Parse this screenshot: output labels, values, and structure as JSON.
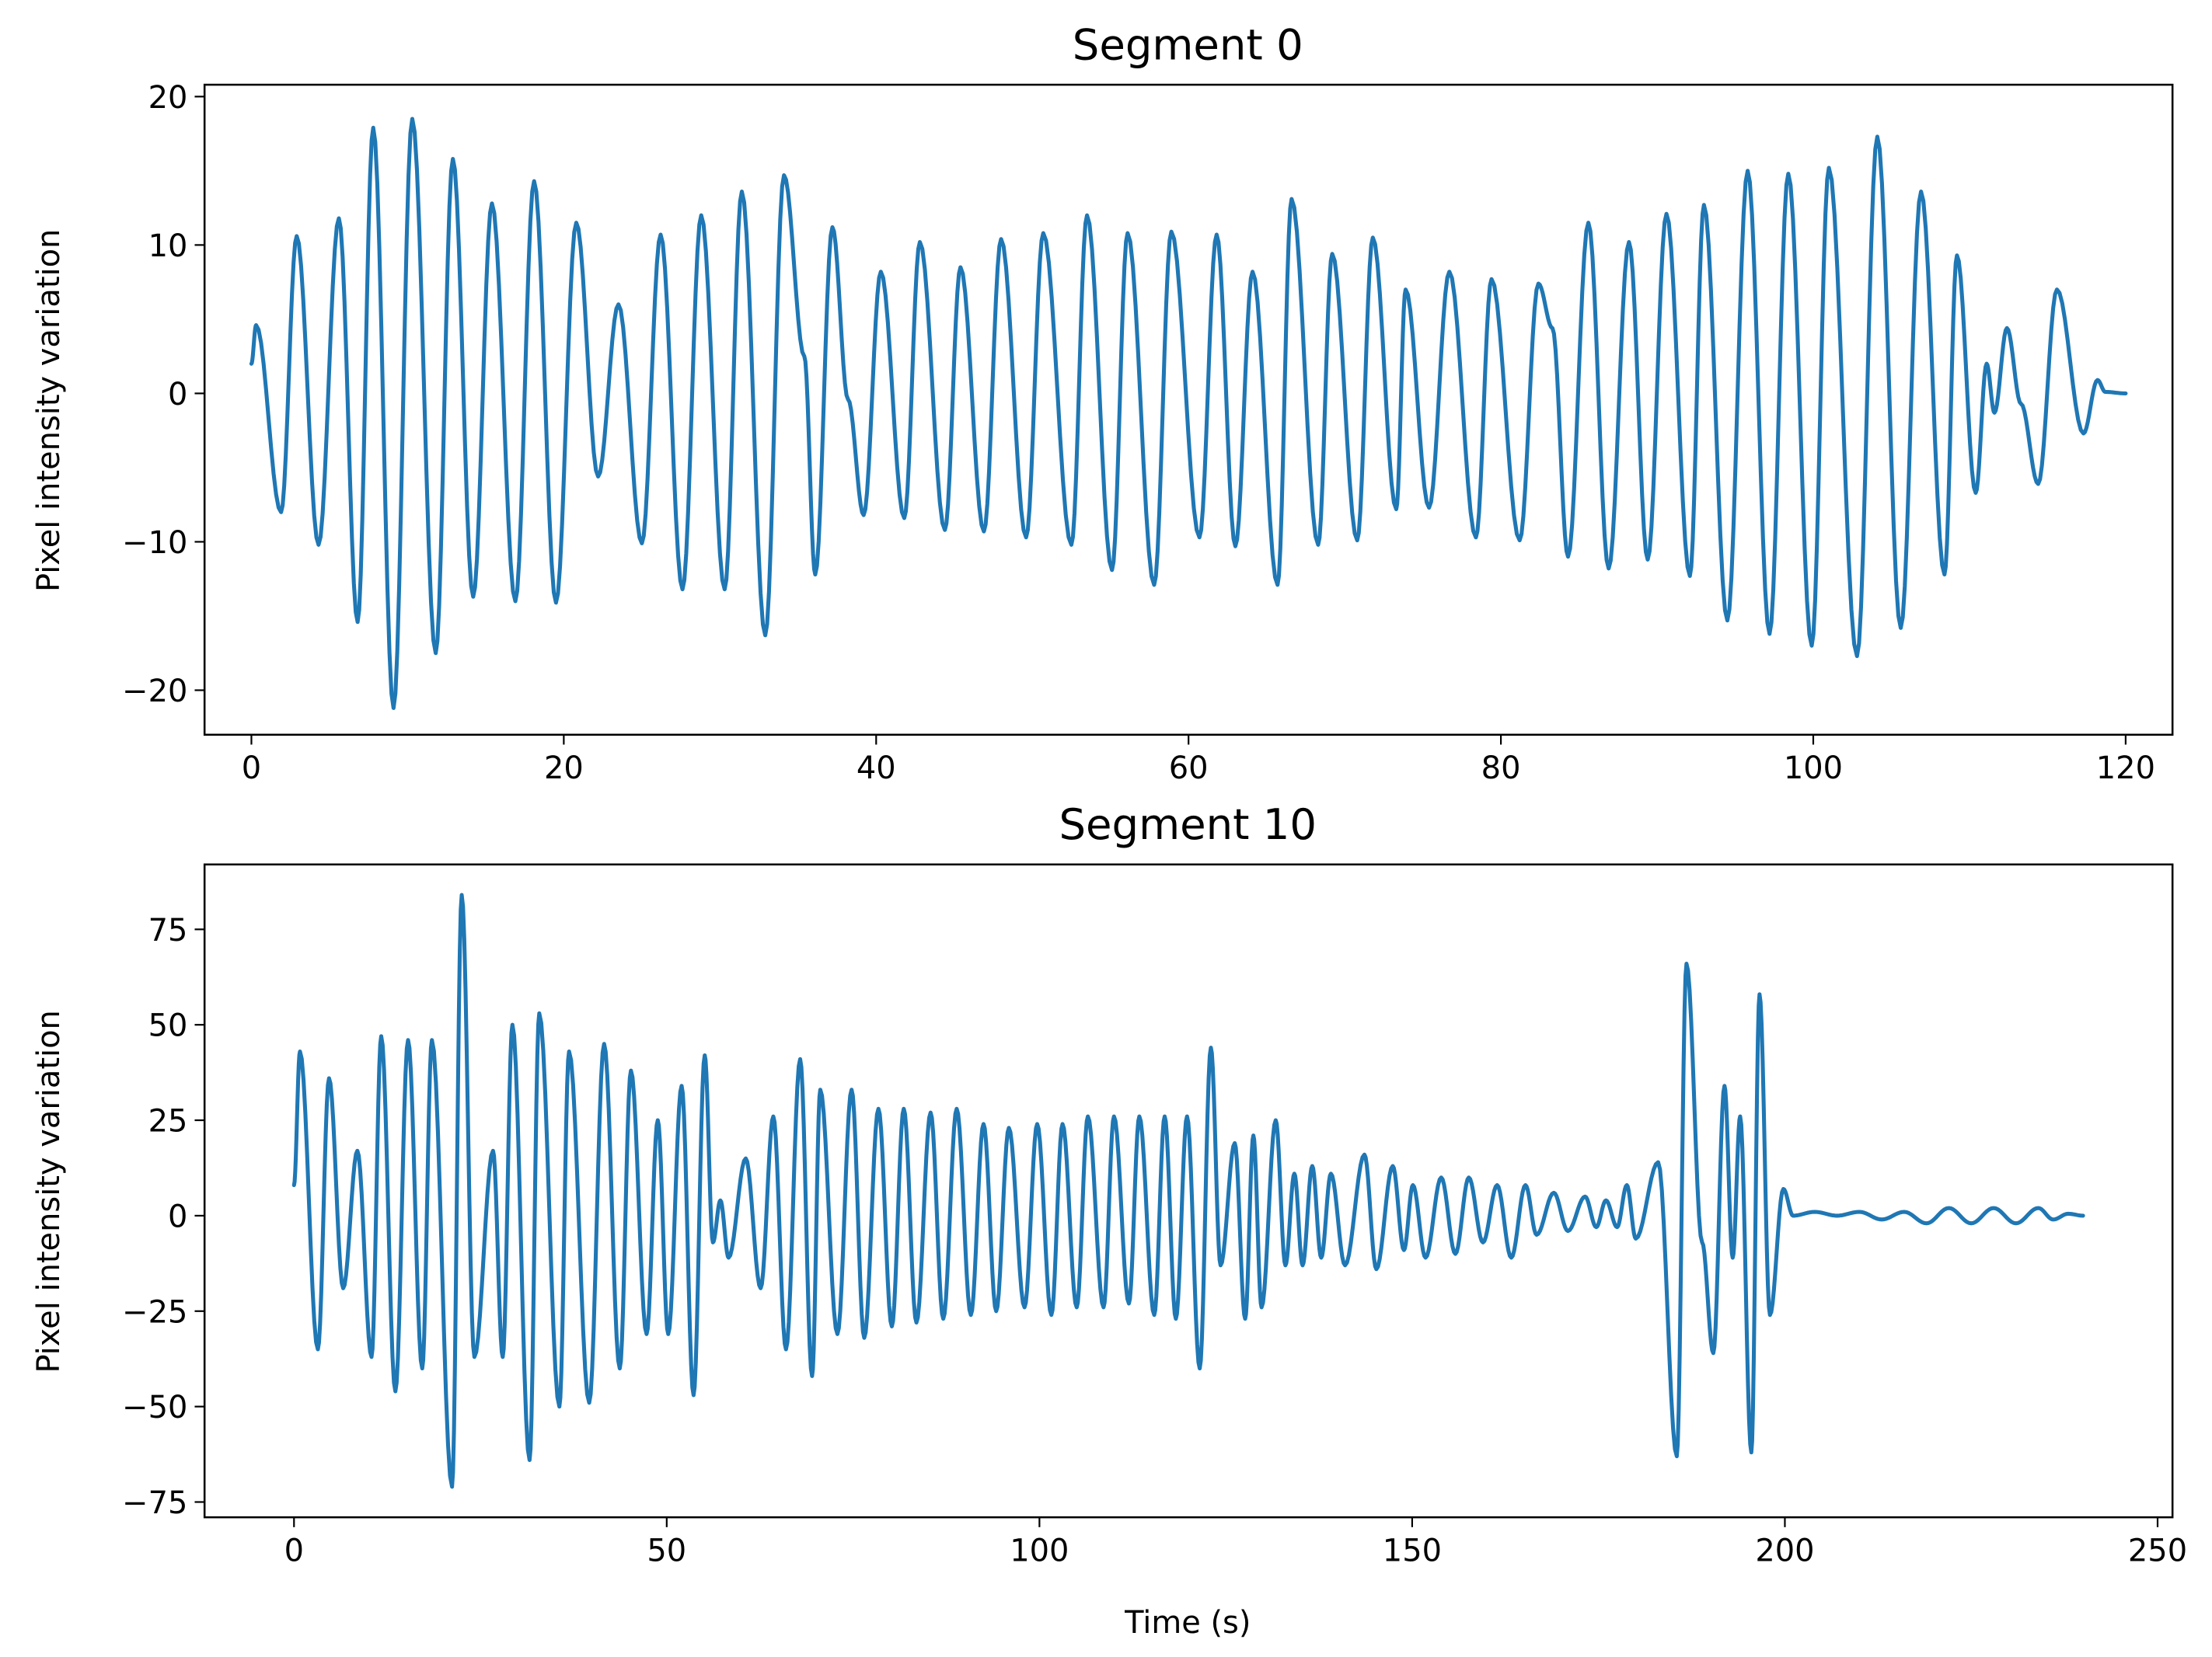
{
  "chart_data": [
    {
      "type": "line",
      "title": "Segment 0",
      "xlabel": "",
      "ylabel": "Pixel intensity variation",
      "xlim": [
        -3,
        123
      ],
      "ylim": [
        -23,
        20.8
      ],
      "xticks": [
        0,
        20,
        40,
        60,
        80,
        100,
        120
      ],
      "yticks": [
        -20,
        -10,
        0,
        10,
        20
      ],
      "xtick_labels": [
        "0",
        "20",
        "40",
        "60",
        "80",
        "100",
        "120"
      ],
      "ytick_labels": [
        "−20",
        "−10",
        "0",
        "10",
        "20"
      ],
      "grid": false,
      "color": "#1f77b4",
      "points": [
        [
          0,
          2
        ],
        [
          0.3,
          4.6
        ],
        [
          1.9,
          -8
        ],
        [
          2.9,
          10.6
        ],
        [
          4.3,
          -10.2
        ],
        [
          5.6,
          11.8
        ],
        [
          6.8,
          -15.4
        ],
        [
          7.8,
          17.9
        ],
        [
          9.1,
          -21.2
        ],
        [
          10.3,
          18.5
        ],
        [
          11.8,
          -17.5
        ],
        [
          12.9,
          15.8
        ],
        [
          14.2,
          -13.7
        ],
        [
          15.4,
          12.8
        ],
        [
          16.9,
          -14
        ],
        [
          18.1,
          14.3
        ],
        [
          19.5,
          -14.1
        ],
        [
          20.8,
          11.5
        ],
        [
          22.2,
          -5.6
        ],
        [
          23.5,
          6
        ],
        [
          25,
          -10.1
        ],
        [
          26.2,
          10.7
        ],
        [
          27.6,
          -13.2
        ],
        [
          28.8,
          12
        ],
        [
          30.3,
          -13.2
        ],
        [
          31.4,
          13.6
        ],
        [
          32.9,
          -16.3
        ],
        [
          34.1,
          14.7
        ],
        [
          35.4,
          2.5
        ],
        [
          36.1,
          -12.2
        ],
        [
          37.2,
          11.2
        ],
        [
          38.2,
          -0.4
        ],
        [
          39.2,
          -8.2
        ],
        [
          40.3,
          8.2
        ],
        [
          41.8,
          -8.4
        ],
        [
          42.8,
          10.2
        ],
        [
          44.4,
          -9.2
        ],
        [
          45.4,
          8.5
        ],
        [
          46.9,
          -9.3
        ],
        [
          48,
          10.4
        ],
        [
          49.6,
          -9.7
        ],
        [
          50.7,
          10.8
        ],
        [
          52.5,
          -10.2
        ],
        [
          53.5,
          12
        ],
        [
          55.1,
          -11.9
        ],
        [
          56.1,
          10.8
        ],
        [
          57.8,
          -12.9
        ],
        [
          58.9,
          10.9
        ],
        [
          60.7,
          -9.7
        ],
        [
          61.8,
          10.7
        ],
        [
          63,
          -10.3
        ],
        [
          64.1,
          8.2
        ],
        [
          65.7,
          -12.9
        ],
        [
          66.6,
          13.1
        ],
        [
          68.3,
          -10.2
        ],
        [
          69.2,
          9.4
        ],
        [
          70.8,
          -9.9
        ],
        [
          71.8,
          10.5
        ],
        [
          73.3,
          -7.8
        ],
        [
          73.9,
          7
        ],
        [
          75.4,
          -7.7
        ],
        [
          76.7,
          8.2
        ],
        [
          78.4,
          -9.7
        ],
        [
          79.4,
          7.7
        ],
        [
          81.2,
          -9.9
        ],
        [
          82.4,
          7.4
        ],
        [
          83.3,
          4.4
        ],
        [
          84.3,
          -11
        ],
        [
          85.6,
          11.5
        ],
        [
          86.9,
          -11.8
        ],
        [
          88.2,
          10.2
        ],
        [
          89.4,
          -11.2
        ],
        [
          90.6,
          12.1
        ],
        [
          92.1,
          -12.3
        ],
        [
          93,
          12.7
        ],
        [
          94.5,
          -15.3
        ],
        [
          95.8,
          15
        ],
        [
          97.2,
          -16.2
        ],
        [
          98.4,
          14.8
        ],
        [
          99.9,
          -17
        ],
        [
          101,
          15.2
        ],
        [
          102.8,
          -17.7
        ],
        [
          104.1,
          17.3
        ],
        [
          105.6,
          -15.8
        ],
        [
          106.9,
          13.6
        ],
        [
          108.4,
          -12.2
        ],
        [
          109.2,
          9.3
        ],
        [
          110.4,
          -6.7
        ],
        [
          111.1,
          2
        ],
        [
          111.6,
          -1.3
        ],
        [
          112.4,
          4.4
        ],
        [
          113.3,
          -0.7
        ],
        [
          114.4,
          -6.1
        ],
        [
          115.6,
          7
        ],
        [
          117.3,
          -2.7
        ],
        [
          118.2,
          0.9
        ],
        [
          118.7,
          0.1
        ],
        [
          120,
          0
        ]
      ]
    },
    {
      "type": "line",
      "title": "Segment 10",
      "xlabel": "Time (s)",
      "ylabel": "Pixel intensity variation",
      "xlim": [
        -12,
        252
      ],
      "ylim": [
        -79,
        92
      ],
      "xticks": [
        0,
        50,
        100,
        150,
        200,
        250
      ],
      "yticks": [
        -75,
        -50,
        -25,
        0,
        25,
        50,
        75
      ],
      "xtick_labels": [
        "0",
        "50",
        "100",
        "150",
        "200",
        "250"
      ],
      "ytick_labels": [
        "−75",
        "−50",
        "−25",
        "0",
        "25",
        "50",
        "75"
      ],
      "grid": false,
      "color": "#1f77b4",
      "points": [
        [
          0,
          8
        ],
        [
          0.8,
          43
        ],
        [
          3.2,
          -35
        ],
        [
          4.7,
          36
        ],
        [
          6.6,
          -19
        ],
        [
          8.5,
          17
        ],
        [
          10.4,
          -37
        ],
        [
          11.7,
          47
        ],
        [
          13.6,
          -46
        ],
        [
          15.3,
          46
        ],
        [
          17.2,
          -40
        ],
        [
          18.5,
          46
        ],
        [
          21.2,
          -71
        ],
        [
          22.5,
          84
        ],
        [
          24.2,
          -37
        ],
        [
          26.7,
          17
        ],
        [
          28,
          -37
        ],
        [
          29.3,
          50
        ],
        [
          31.6,
          -64
        ],
        [
          32.9,
          53
        ],
        [
          35.6,
          -50
        ],
        [
          36.9,
          43
        ],
        [
          39.6,
          -49
        ],
        [
          41.6,
          45
        ],
        [
          43.7,
          -40
        ],
        [
          45.2,
          38
        ],
        [
          47.3,
          -31
        ],
        [
          48.8,
          25
        ],
        [
          50.2,
          -31
        ],
        [
          52,
          34
        ],
        [
          53.6,
          -47
        ],
        [
          55.1,
          42
        ],
        [
          56.2,
          -7
        ],
        [
          57.2,
          4
        ],
        [
          58.3,
          -11
        ],
        [
          60.6,
          15
        ],
        [
          62.6,
          -19
        ],
        [
          64.3,
          26
        ],
        [
          66,
          -35
        ],
        [
          67.9,
          41
        ],
        [
          69.5,
          -42
        ],
        [
          70.6,
          33
        ],
        [
          72.9,
          -31
        ],
        [
          74.8,
          33
        ],
        [
          76.5,
          -32
        ],
        [
          78.4,
          28
        ],
        [
          80.2,
          -29
        ],
        [
          81.8,
          28
        ],
        [
          83.5,
          -28
        ],
        [
          85.4,
          27
        ],
        [
          87.1,
          -27
        ],
        [
          88.9,
          28
        ],
        [
          90.8,
          -26
        ],
        [
          92.5,
          24
        ],
        [
          94.2,
          -25
        ],
        [
          95.9,
          23
        ],
        [
          98,
          -24
        ],
        [
          99.7,
          24
        ],
        [
          101.6,
          -26
        ],
        [
          103.1,
          24
        ],
        [
          105,
          -24
        ],
        [
          106.5,
          26
        ],
        [
          108.6,
          -24
        ],
        [
          110,
          26
        ],
        [
          112,
          -23
        ],
        [
          113.4,
          26
        ],
        [
          115.4,
          -26
        ],
        [
          116.8,
          26
        ],
        [
          118.3,
          -27
        ],
        [
          119.8,
          26
        ],
        [
          121.5,
          -40
        ],
        [
          123,
          44
        ],
        [
          124.3,
          -13
        ],
        [
          126.2,
          19
        ],
        [
          127.6,
          -27
        ],
        [
          128.7,
          21
        ],
        [
          129.8,
          -24
        ],
        [
          131.7,
          25
        ],
        [
          133,
          -13
        ],
        [
          134.2,
          11
        ],
        [
          135.3,
          -13
        ],
        [
          136.6,
          13
        ],
        [
          137.8,
          -11
        ],
        [
          139.1,
          11
        ],
        [
          141,
          -13
        ],
        [
          143.6,
          16
        ],
        [
          145.2,
          -14
        ],
        [
          147.4,
          13
        ],
        [
          148.9,
          -9
        ],
        [
          150.1,
          8
        ],
        [
          151.8,
          -11
        ],
        [
          153.9,
          10
        ],
        [
          155.8,
          -10
        ],
        [
          157.6,
          10
        ],
        [
          159.5,
          -7
        ],
        [
          161.4,
          8
        ],
        [
          163.3,
          -11
        ],
        [
          165.2,
          8
        ],
        [
          166.7,
          -5
        ],
        [
          169,
          6
        ],
        [
          170.9,
          -4
        ],
        [
          173.2,
          5
        ],
        [
          174.7,
          -3
        ],
        [
          176,
          4
        ],
        [
          177.5,
          -3
        ],
        [
          178.8,
          8
        ],
        [
          180,
          -6
        ],
        [
          183,
          14
        ],
        [
          185.5,
          -63
        ],
        [
          186.8,
          66
        ],
        [
          188.9,
          -7
        ],
        [
          190.4,
          -36
        ],
        [
          191.9,
          34
        ],
        [
          193,
          -11
        ],
        [
          194,
          26
        ],
        [
          195.5,
          -62
        ],
        [
          196.6,
          58
        ],
        [
          198,
          -26
        ],
        [
          199.8,
          7
        ],
        [
          201.1,
          0
        ],
        [
          204,
          1
        ],
        [
          207,
          0
        ],
        [
          210,
          1
        ],
        [
          213,
          -1
        ],
        [
          216,
          1
        ],
        [
          219,
          -2
        ],
        [
          222,
          2
        ],
        [
          225,
          -2
        ],
        [
          228,
          2
        ],
        [
          231,
          -2
        ],
        [
          234,
          2
        ],
        [
          236,
          -1
        ],
        [
          238,
          0.5
        ],
        [
          240,
          0
        ]
      ]
    }
  ]
}
